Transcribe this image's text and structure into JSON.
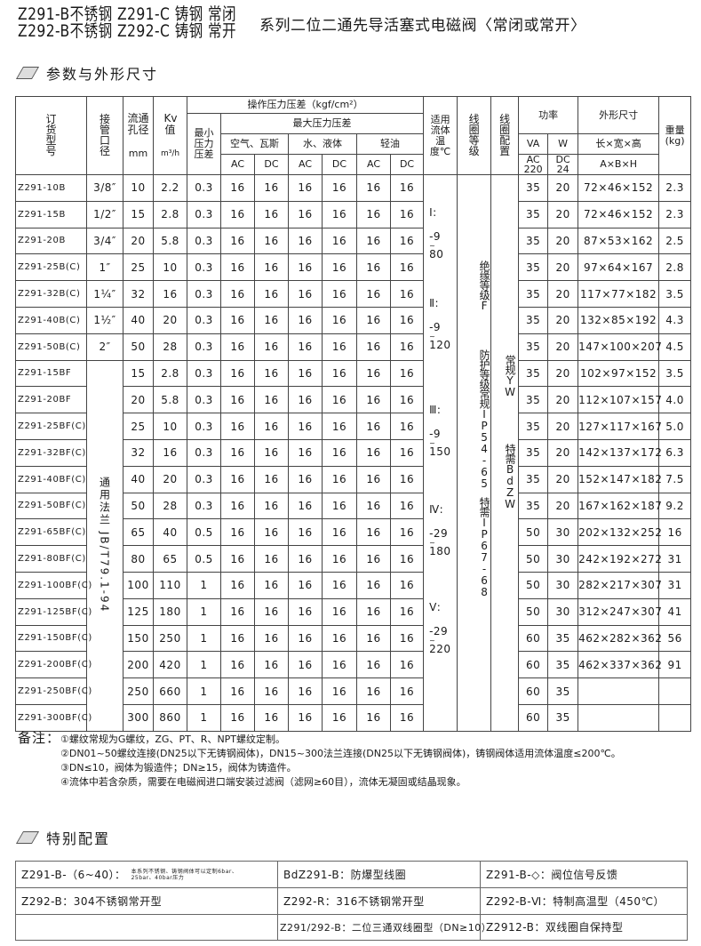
{
  "title": {
    "line1": "Z291-B不锈钢 Z291-C 铸钢 常闭",
    "line2": "Z292-B不锈钢 Z292-C 铸钢 常开",
    "main": "系列二位二通先导活塞式电磁阀〈常闭或常开〉"
  },
  "section1": "参数与外形尺寸",
  "section2": "特别配置",
  "header": {
    "model": "订货型号",
    "port": "接管口径",
    "bore": "流通孔径",
    "bore_unit": "mm",
    "kv": "Kv值",
    "kv_unit": "m³/h",
    "pressure": "操作压力压差（kgf/cm²）",
    "min_pressure": "最小压力压差",
    "max_pressure": "最大压力压差",
    "air": "空气、瓦斯",
    "water": "水、液体",
    "oil": "轻油",
    "ac": "AC",
    "dc": "DC",
    "temp": "适用流体温度℃",
    "insulation": "线圈等级",
    "coil": "线圈配置",
    "power": "功率",
    "va": "VA",
    "w": "W",
    "ac220": "AC 220",
    "dc24": "DC 24",
    "dims": "外形尺寸",
    "dims_sub": "长×宽×高",
    "dims_abh": "A×B×H",
    "weight": "重量(kg)"
  },
  "rows": [
    {
      "model": "Z291-10B",
      "port": "3/8″",
      "bore": "10",
      "kv": "2.2",
      "min": "0.3",
      "p": [
        "16",
        "16",
        "16",
        "16",
        "16",
        "16"
      ],
      "va": "35",
      "w": "20",
      "dims": "72×46×152",
      "weight": "2.3"
    },
    {
      "model": "Z291-15B",
      "port": "1/2″",
      "bore": "15",
      "kv": "2.8",
      "min": "0.3",
      "p": [
        "16",
        "16",
        "16",
        "16",
        "16",
        "16"
      ],
      "va": "35",
      "w": "20",
      "dims": "72×46×152",
      "weight": "2.3"
    },
    {
      "model": "Z291-20B",
      "port": "3/4″",
      "bore": "20",
      "kv": "5.8",
      "min": "0.3",
      "p": [
        "16",
        "16",
        "16",
        "16",
        "16",
        "16"
      ],
      "va": "35",
      "w": "20",
      "dims": "87×53×162",
      "weight": "2.5"
    },
    {
      "model": "Z291-25B(C)",
      "port": "1″",
      "bore": "25",
      "kv": "10",
      "min": "0.3",
      "p": [
        "16",
        "16",
        "16",
        "16",
        "16",
        "16"
      ],
      "va": "35",
      "w": "20",
      "dims": "97×64×167",
      "weight": "2.8"
    },
    {
      "model": "Z291-32B(C)",
      "port": "1¼″",
      "bore": "32",
      "kv": "16",
      "min": "0.3",
      "p": [
        "16",
        "16",
        "16",
        "16",
        "16",
        "16"
      ],
      "va": "35",
      "w": "20",
      "dims": "117×77×182",
      "weight": "3.5"
    },
    {
      "model": "Z291-40B(C)",
      "port": "1½″",
      "bore": "40",
      "kv": "20",
      "min": "0.3",
      "p": [
        "16",
        "16",
        "16",
        "16",
        "16",
        "16"
      ],
      "va": "35",
      "w": "20",
      "dims": "132×85×192",
      "weight": "4.3"
    },
    {
      "model": "Z291-50B(C)",
      "port": "2″",
      "bore": "50",
      "kv": "28",
      "min": "0.3",
      "p": [
        "16",
        "16",
        "16",
        "16",
        "16",
        "16"
      ],
      "va": "35",
      "w": "20",
      "dims": "147×100×207",
      "weight": "4.5"
    },
    {
      "model": "Z291-15BF",
      "port": "通用法兰  JB/T79.1-94",
      "bore": "15",
      "kv": "2.8",
      "min": "0.3",
      "p": [
        "16",
        "16",
        "16",
        "16",
        "16",
        "16"
      ],
      "va": "35",
      "w": "20",
      "dims": "102×97×152",
      "weight": "3.5"
    },
    {
      "model": "Z291-20BF",
      "bore": "20",
      "kv": "5.8",
      "min": "0.3",
      "p": [
        "16",
        "16",
        "16",
        "16",
        "16",
        "16"
      ],
      "va": "35",
      "w": "20",
      "dims": "112×107×157",
      "weight": "4.0"
    },
    {
      "model": "Z291-25BF(C)",
      "bore": "25",
      "kv": "10",
      "min": "0.3",
      "p": [
        "16",
        "16",
        "16",
        "16",
        "16",
        "16"
      ],
      "va": "35",
      "w": "20",
      "dims": "127×117×167",
      "weight": "5.0"
    },
    {
      "model": "Z291-32BF(C)",
      "bore": "32",
      "kv": "16",
      "min": "0.3",
      "p": [
        "16",
        "16",
        "16",
        "16",
        "16",
        "16"
      ],
      "va": "35",
      "w": "20",
      "dims": "142×137×172",
      "weight": "6.3"
    },
    {
      "model": "Z291-40BF(C)",
      "bore": "40",
      "kv": "20",
      "min": "0.3",
      "p": [
        "16",
        "16",
        "16",
        "16",
        "16",
        "16"
      ],
      "va": "35",
      "w": "20",
      "dims": "152×147×182",
      "weight": "7.5"
    },
    {
      "model": "Z291-50BF(C)",
      "bore": "50",
      "kv": "28",
      "min": "0.3",
      "p": [
        "16",
        "16",
        "16",
        "16",
        "16",
        "16"
      ],
      "va": "35",
      "w": "20",
      "dims": "167×162×187",
      "weight": "9.2"
    },
    {
      "model": "Z291-65BF(C)",
      "bore": "65",
      "kv": "40",
      "min": "0.5",
      "p": [
        "16",
        "16",
        "16",
        "16",
        "16",
        "16"
      ],
      "va": "50",
      "w": "30",
      "dims": "202×132×252",
      "weight": "16"
    },
    {
      "model": "Z291-80BF(C)",
      "bore": "80",
      "kv": "65",
      "min": "0.5",
      "p": [
        "16",
        "16",
        "16",
        "16",
        "16",
        "16"
      ],
      "va": "50",
      "w": "30",
      "dims": "242×192×272",
      "weight": "31"
    },
    {
      "model": "Z291-100BF(C)",
      "bore": "100",
      "kv": "110",
      "min": "1",
      "p": [
        "16",
        "16",
        "16",
        "16",
        "16",
        "16"
      ],
      "va": "50",
      "w": "30",
      "dims": "282×217×307",
      "weight": "31"
    },
    {
      "model": "Z291-125BF(C)",
      "bore": "125",
      "kv": "180",
      "min": "1",
      "p": [
        "16",
        "16",
        "16",
        "16",
        "16",
        "16"
      ],
      "va": "50",
      "w": "30",
      "dims": "312×247×307",
      "weight": "41"
    },
    {
      "model": "Z291-150BF(C)",
      "bore": "150",
      "kv": "250",
      "min": "1",
      "p": [
        "16",
        "16",
        "16",
        "16",
        "16",
        "16"
      ],
      "va": "60",
      "w": "35",
      "dims": "462×282×362",
      "weight": "56"
    },
    {
      "model": "Z291-200BF(C)",
      "bore": "200",
      "kv": "420",
      "min": "1",
      "p": [
        "16",
        "16",
        "16",
        "16",
        "16",
        "16"
      ],
      "va": "60",
      "w": "35",
      "dims": "462×337×362",
      "weight": "91"
    },
    {
      "model": "Z291-250BF(C)",
      "bore": "250",
      "kv": "660",
      "min": "1",
      "p": [
        "16",
        "16",
        "16",
        "16",
        "16",
        "16"
      ],
      "va": "60",
      "w": "35",
      "dims": "",
      "weight": ""
    },
    {
      "model": "Z291-300BF(C)",
      "bore": "300",
      "kv": "860",
      "min": "1",
      "p": [
        "16",
        "16",
        "16",
        "16",
        "16",
        "16"
      ],
      "va": "60",
      "w": "35",
      "dims": "",
      "weight": ""
    }
  ],
  "temp_grades": [
    {
      "grade": "Ⅰ:",
      "low": "-9",
      "sep": "~",
      "high": "80"
    },
    {
      "grade": "Ⅱ:",
      "low": "-9",
      "sep": "~",
      "high": "120"
    },
    {
      "grade": "Ⅲ:",
      "low": "-9",
      "sep": "~",
      "high": "150"
    },
    {
      "grade": "Ⅳ:",
      "low": "-29",
      "sep": "~",
      "high": "180"
    },
    {
      "grade": "Ⅴ:",
      "low": "-29",
      "sep": "~",
      "high": "220"
    }
  ],
  "insulation_texts": [
    "绝缘等级F",
    "防护等级常规IP54-65",
    "特需IP67-68"
  ],
  "coil_texts": [
    "常规YW",
    "特需BdZW"
  ],
  "notes": {
    "label": "备注：",
    "items": [
      "①螺纹常规为G螺纹，ZG、PT、R、NPT螺纹定制。",
      "②DN01~50螺纹连接(DN25以下无铸钢阀体)，DN15~300法兰连接(DN25以下无铸钢阀体)，铸钢阀体适用流体温度≤200℃。",
      "③DN≤10，阀体为锻造件；DN≥15，阀体为铸造件。",
      "④流体中若含杂质，需要在电磁阀进口端安装过滤阀（滤网≥60目），流体无凝固或结晶现象。"
    ]
  },
  "special": [
    [
      "Z291-B-（6~40）：",
      "BdZ291-B：防爆型线圈",
      "Z291-B-◇：阀位信号反馈"
    ],
    [
      "Z292-B：304不锈钢常开型",
      "Z292-R：316不锈钢常开型",
      "Z292-B-Ⅵ：特制高温型（450℃）"
    ],
    [
      "",
      "Z291/292-B：二位三通双线圈型（DN≥10）",
      "Z2912-B：双线圈自保持型"
    ]
  ],
  "special_note": "本系列不锈钢、铸钢阀体可以定制6bar、25bar、40bar压力"
}
